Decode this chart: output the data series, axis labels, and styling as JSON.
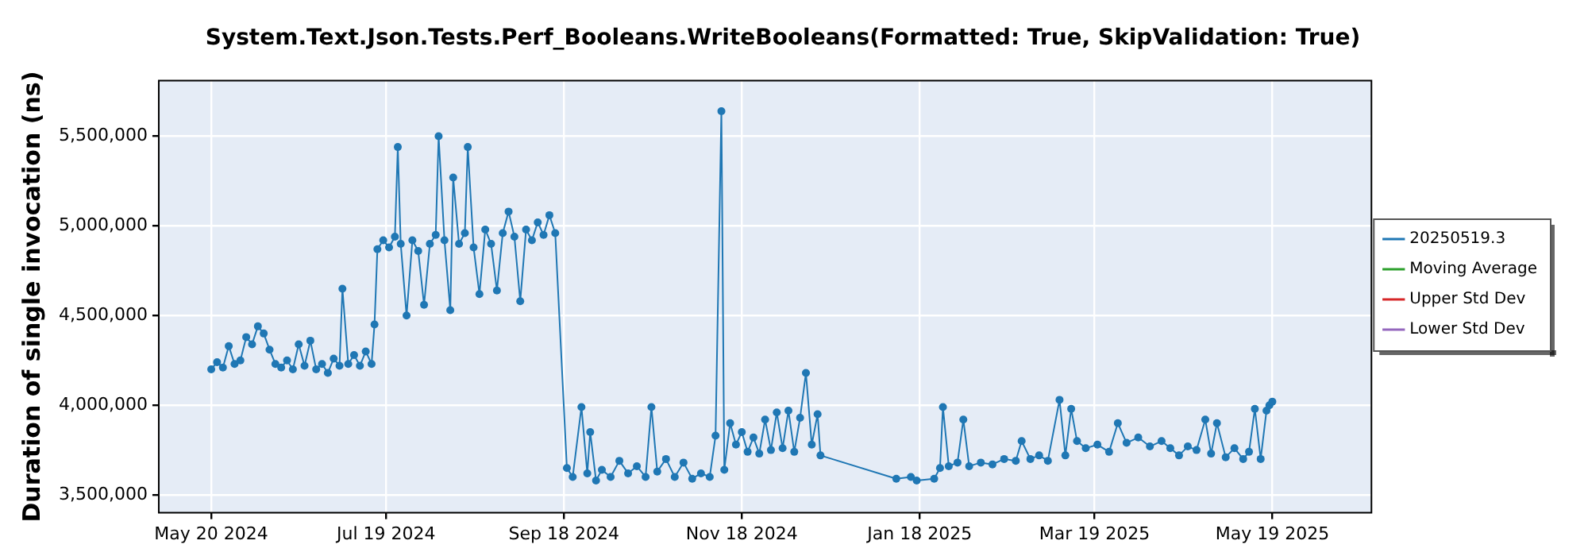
{
  "chart_data": {
    "type": "line",
    "title": "System.Text.Json.Tests.Perf_Booleans.WriteBooleans(Formatted: True, SkipValidation: True)",
    "ylabel": "Duration of single invocation (ns)",
    "xlim": [
      "2024-05-02",
      "2025-06-22"
    ],
    "xticks": [
      {
        "value": "2024-05-20",
        "label": "May 20 2024"
      },
      {
        "value": "2024-07-19",
        "label": "Jul 19 2024"
      },
      {
        "value": "2024-09-18",
        "label": "Sep 18 2024"
      },
      {
        "value": "2024-11-18",
        "label": "Nov 18 2024"
      },
      {
        "value": "2025-01-18",
        "label": "Jan 18 2025"
      },
      {
        "value": "2025-03-19",
        "label": "Mar 19 2025"
      },
      {
        "value": "2025-05-19",
        "label": "May 19 2025"
      }
    ],
    "ylim": [
      3400000,
      5810000
    ],
    "yticks": [
      {
        "value": 3500000,
        "label": "3,500,000"
      },
      {
        "value": 4000000,
        "label": "4,000,000"
      },
      {
        "value": 4500000,
        "label": "4,500,000"
      },
      {
        "value": 5000000,
        "label": "5,000,000"
      },
      {
        "value": 5500000,
        "label": "5,500,000"
      }
    ],
    "grid": true,
    "legend": "right",
    "marker": "circle",
    "line_style": "solid",
    "x": [
      "2024-05-20",
      "2024-05-22",
      "2024-05-24",
      "2024-05-26",
      "2024-05-28",
      "2024-05-30",
      "2024-06-01",
      "2024-06-03",
      "2024-06-05",
      "2024-06-07",
      "2024-06-09",
      "2024-06-11",
      "2024-06-13",
      "2024-06-15",
      "2024-06-17",
      "2024-06-19",
      "2024-06-21",
      "2024-06-23",
      "2024-06-25",
      "2024-06-27",
      "2024-06-29",
      "2024-07-01",
      "2024-07-03",
      "2024-07-04",
      "2024-07-06",
      "2024-07-08",
      "2024-07-10",
      "2024-07-12",
      "2024-07-14",
      "2024-07-15",
      "2024-07-16",
      "2024-07-18",
      "2024-07-20",
      "2024-07-22",
      "2024-07-23",
      "2024-07-24",
      "2024-07-26",
      "2024-07-28",
      "2024-07-30",
      "2024-08-01",
      "2024-08-03",
      "2024-08-05",
      "2024-08-06",
      "2024-08-08",
      "2024-08-10",
      "2024-08-11",
      "2024-08-13",
      "2024-08-15",
      "2024-08-16",
      "2024-08-18",
      "2024-08-20",
      "2024-08-22",
      "2024-08-24",
      "2024-08-26",
      "2024-08-28",
      "2024-08-30",
      "2024-09-01",
      "2024-09-03",
      "2024-09-05",
      "2024-09-07",
      "2024-09-09",
      "2024-09-11",
      "2024-09-13",
      "2024-09-15",
      "2024-09-19",
      "2024-09-21",
      "2024-09-24",
      "2024-09-26",
      "2024-09-27",
      "2024-09-29",
      "2024-10-01",
      "2024-10-04",
      "2024-10-07",
      "2024-10-10",
      "2024-10-13",
      "2024-10-16",
      "2024-10-18",
      "2024-10-20",
      "2024-10-23",
      "2024-10-26",
      "2024-10-29",
      "2024-11-01",
      "2024-11-04",
      "2024-11-07",
      "2024-11-09",
      "2024-11-11",
      "2024-11-12",
      "2024-11-14",
      "2024-11-16",
      "2024-11-18",
      "2024-11-20",
      "2024-11-22",
      "2024-11-24",
      "2024-11-26",
      "2024-11-28",
      "2024-11-30",
      "2024-12-02",
      "2024-12-04",
      "2024-12-06",
      "2024-12-08",
      "2024-12-10",
      "2024-12-12",
      "2024-12-14",
      "2024-12-15",
      "2025-01-10",
      "2025-01-15",
      "2025-01-17",
      "2025-01-23",
      "2025-01-25",
      "2025-01-26",
      "2025-01-28",
      "2025-01-31",
      "2025-02-02",
      "2025-02-04",
      "2025-02-08",
      "2025-02-12",
      "2025-02-16",
      "2025-02-20",
      "2025-02-22",
      "2025-02-25",
      "2025-02-28",
      "2025-03-03",
      "2025-03-07",
      "2025-03-09",
      "2025-03-11",
      "2025-03-13",
      "2025-03-16",
      "2025-03-20",
      "2025-03-24",
      "2025-03-27",
      "2025-03-30",
      "2025-04-03",
      "2025-04-07",
      "2025-04-11",
      "2025-04-14",
      "2025-04-17",
      "2025-04-20",
      "2025-04-23",
      "2025-04-26",
      "2025-04-28",
      "2025-04-30",
      "2025-05-03",
      "2025-05-06",
      "2025-05-09",
      "2025-05-11",
      "2025-05-13",
      "2025-05-15",
      "2025-05-17",
      "2025-05-18",
      "2025-05-19"
    ],
    "series": [
      {
        "name": "20250519.3",
        "color": "#1f77b4",
        "values": [
          4200000,
          4240000,
          4210000,
          4330000,
          4230000,
          4250000,
          4380000,
          4340000,
          4440000,
          4400000,
          4310000,
          4230000,
          4210000,
          4250000,
          4200000,
          4340000,
          4220000,
          4360000,
          4200000,
          4230000,
          4180000,
          4260000,
          4220000,
          4650000,
          4230000,
          4280000,
          4220000,
          4300000,
          4230000,
          4450000,
          4870000,
          4920000,
          4880000,
          4940000,
          5440000,
          4900000,
          4500000,
          4920000,
          4860000,
          4560000,
          4900000,
          4950000,
          5500000,
          4920000,
          4530000,
          5270000,
          4900000,
          4960000,
          5440000,
          4880000,
          4620000,
          4980000,
          4900000,
          4640000,
          4960000,
          5080000,
          4940000,
          4580000,
          4980000,
          4920000,
          5020000,
          4950000,
          5060000,
          4960000,
          3650000,
          3600000,
          3990000,
          3620000,
          3850000,
          3580000,
          3640000,
          3600000,
          3690000,
          3620000,
          3660000,
          3600000,
          3990000,
          3630000,
          3700000,
          3600000,
          3680000,
          3590000,
          3620000,
          3600000,
          3830000,
          5640000,
          3640000,
          3900000,
          3780000,
          3850000,
          3740000,
          3820000,
          3730000,
          3920000,
          3750000,
          3960000,
          3760000,
          3970000,
          3740000,
          3930000,
          4180000,
          3780000,
          3950000,
          3720000,
          3590000,
          3600000,
          3580000,
          3590000,
          3650000,
          3990000,
          3660000,
          3680000,
          3920000,
          3660000,
          3680000,
          3670000,
          3700000,
          3690000,
          3800000,
          3700000,
          3720000,
          3690000,
          4030000,
          3720000,
          3980000,
          3800000,
          3760000,
          3780000,
          3740000,
          3900000,
          3790000,
          3820000,
          3770000,
          3800000,
          3760000,
          3720000,
          3770000,
          3750000,
          3920000,
          3730000,
          3900000,
          3710000,
          3760000,
          3700000,
          3740000,
          3980000,
          3700000,
          3970000,
          4000000,
          4020000
        ]
      },
      {
        "name": "Moving Average",
        "color": "#2ca02c",
        "values": [
          null,
          null,
          null,
          null,
          null,
          null,
          null,
          null,
          null,
          null,
          null,
          null,
          null,
          null,
          null,
          null,
          null,
          null,
          null,
          null,
          null,
          null,
          null,
          null,
          null,
          null,
          null,
          null,
          null,
          null,
          null,
          null,
          null,
          null,
          null,
          null,
          null,
          null,
          null,
          null,
          null,
          null,
          null,
          null,
          null,
          null,
          null,
          null,
          null,
          null,
          null,
          null,
          null,
          null,
          null,
          null,
          null,
          null,
          null,
          null,
          null,
          null,
          null,
          null,
          null,
          null,
          null,
          null,
          null,
          null,
          null,
          null,
          null,
          null,
          null,
          null,
          null,
          null,
          null,
          null,
          null,
          null,
          null,
          null,
          null,
          null,
          null,
          null,
          null,
          null,
          null,
          null,
          null,
          null,
          null,
          null,
          null,
          null,
          null,
          null,
          null,
          null,
          null,
          null,
          null,
          null,
          null,
          null,
          null,
          null,
          null,
          null,
          null,
          null,
          null,
          null,
          null,
          null,
          null,
          null,
          null,
          null,
          null,
          null,
          null,
          null,
          null,
          null,
          null,
          null,
          null,
          null,
          null,
          null,
          null,
          null,
          null,
          null,
          null,
          null,
          null,
          null,
          null,
          null,
          null,
          null,
          null,
          null,
          null,
          null
        ]
      },
      {
        "name": "Upper Std Dev",
        "color": "#d62728",
        "values": [
          null,
          null,
          null,
          null,
          null,
          null,
          null,
          null,
          null,
          null,
          null,
          null,
          null,
          null,
          null,
          null,
          null,
          null,
          null,
          null,
          null,
          null,
          null,
          null,
          null,
          null,
          null,
          null,
          null,
          null,
          null,
          null,
          null,
          null,
          null,
          null,
          null,
          null,
          null,
          null,
          null,
          null,
          null,
          null,
          null,
          null,
          null,
          null,
          null,
          null,
          null,
          null,
          null,
          null,
          null,
          null,
          null,
          null,
          null,
          null,
          null,
          null,
          null,
          null,
          null,
          null,
          null,
          null,
          null,
          null,
          null,
          null,
          null,
          null,
          null,
          null,
          null,
          null,
          null,
          null,
          null,
          null,
          null,
          null,
          null,
          null,
          null,
          null,
          null,
          null,
          null,
          null,
          null,
          null,
          null,
          null,
          null,
          null,
          null,
          null,
          null,
          null,
          null,
          null,
          null,
          null,
          null,
          null,
          null,
          null,
          null,
          null,
          null,
          null,
          null,
          null,
          null,
          null,
          null,
          null,
          null,
          null,
          null,
          null,
          null,
          null,
          null,
          null,
          null,
          null,
          null,
          null,
          null,
          null,
          null,
          null,
          null,
          null,
          null,
          null,
          null,
          null,
          null,
          null,
          null,
          null,
          null,
          null,
          null,
          null
        ]
      },
      {
        "name": "Lower Std Dev",
        "color": "#9467bd",
        "values": [
          null,
          null,
          null,
          null,
          null,
          null,
          null,
          null,
          null,
          null,
          null,
          null,
          null,
          null,
          null,
          null,
          null,
          null,
          null,
          null,
          null,
          null,
          null,
          null,
          null,
          null,
          null,
          null,
          null,
          null,
          null,
          null,
          null,
          null,
          null,
          null,
          null,
          null,
          null,
          null,
          null,
          null,
          null,
          null,
          null,
          null,
          null,
          null,
          null,
          null,
          null,
          null,
          null,
          null,
          null,
          null,
          null,
          null,
          null,
          null,
          null,
          null,
          null,
          null,
          null,
          null,
          null,
          null,
          null,
          null,
          null,
          null,
          null,
          null,
          null,
          null,
          null,
          null,
          null,
          null,
          null,
          null,
          null,
          null,
          null,
          null,
          null,
          null,
          null,
          null,
          null,
          null,
          null,
          null,
          null,
          null,
          null,
          null,
          null,
          null,
          null,
          null,
          null,
          null,
          null,
          null,
          null,
          null,
          null,
          null,
          null,
          null,
          null,
          null,
          null,
          null,
          null,
          null,
          null,
          null,
          null,
          null,
          null,
          null,
          null,
          null,
          null,
          null,
          null,
          null,
          null,
          null,
          null,
          null,
          null,
          null,
          null,
          null,
          null,
          null,
          null,
          null,
          null,
          null,
          null,
          null,
          null,
          null,
          null,
          null
        ]
      }
    ]
  }
}
